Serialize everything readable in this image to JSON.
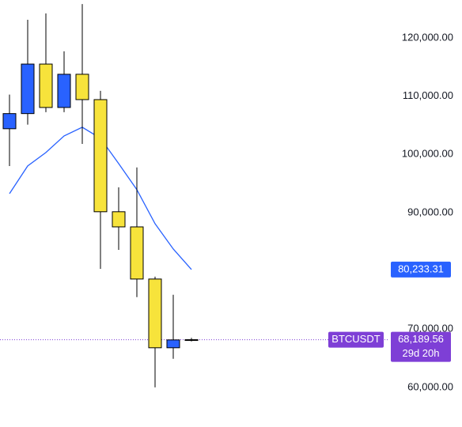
{
  "chart_data": {
    "type": "candlestick",
    "categories": [
      null,
      null,
      null,
      null,
      null,
      null,
      null,
      null,
      null,
      null,
      null
    ],
    "open": [
      104400,
      107000,
      115500,
      108050,
      113750,
      109400,
      90150,
      87550,
      78600,
      66800,
      68150
    ],
    "high": [
      110270,
      123100,
      124200,
      117700,
      125800,
      110900,
      94350,
      97750,
      79000,
      75900,
      68500
    ],
    "low": [
      98000,
      105100,
      107250,
      107250,
      101800,
      80350,
      83600,
      75500,
      60000,
      64900,
      67900
    ],
    "close": [
      107000,
      115500,
      108050,
      113750,
      109400,
      90150,
      87550,
      78600,
      66800,
      68150,
      68189.56
    ],
    "up_color": "#2962ff",
    "down_color": "#f7e33b",
    "ma": {
      "color": "#2962ff",
      "values": [
        93260,
        98010,
        100320,
        103170,
        104660,
        102760,
        98420,
        93940,
        88100,
        83760,
        80233.31
      ],
      "label": "80,233.31"
    },
    "last_price": {
      "symbol": "BTCUSDT",
      "label": "68,189.56",
      "countdown": "29d 20h",
      "color": "#7e3fd6"
    },
    "ylim": [
      53200,
      126500
    ],
    "yticks": [
      {
        "value": 60000,
        "label": "60,000.00"
      },
      {
        "value": 70000,
        "label": "70,000.00"
      },
      {
        "value": 90000,
        "label": "90,000.00"
      },
      {
        "value": 100000,
        "label": "100,000.00"
      },
      {
        "value": 110000,
        "label": "110,000.00"
      },
      {
        "value": 120000,
        "label": "120,000.00"
      }
    ]
  }
}
